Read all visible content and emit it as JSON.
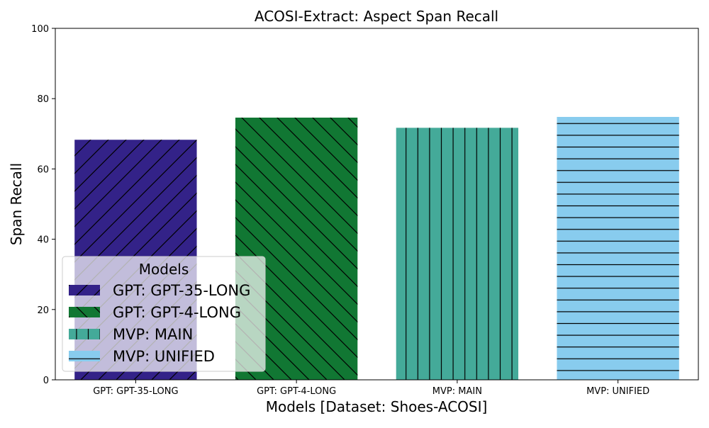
{
  "chart_data": {
    "type": "bar",
    "title": "ACOSI-Extract: Aspect Span Recall",
    "xlabel": "Models [Dataset: Shoes-ACOSI]",
    "ylabel": "Span Recall",
    "ylim": [
      0,
      100
    ],
    "yticks": [
      0,
      20,
      40,
      60,
      80,
      100
    ],
    "categories": [
      "GPT: GPT-35-LONG",
      "GPT: GPT-4-LONG",
      "MVP: MAIN",
      "MVP: UNIFIED"
    ],
    "values": [
      68.3,
      74.6,
      71.7,
      74.8
    ],
    "colors": [
      "#332288",
      "#117733",
      "#44AA99",
      "#88CCEE"
    ],
    "hatches": [
      "diagonal-forward",
      "diagonal-back",
      "vertical",
      "horizontal"
    ],
    "grid": false,
    "legend": {
      "title": "Models",
      "placement": "lower-left",
      "entries": [
        "GPT: GPT-35-LONG",
        "GPT: GPT-4-LONG",
        "MVP: MAIN",
        "MVP: UNIFIED"
      ]
    }
  }
}
